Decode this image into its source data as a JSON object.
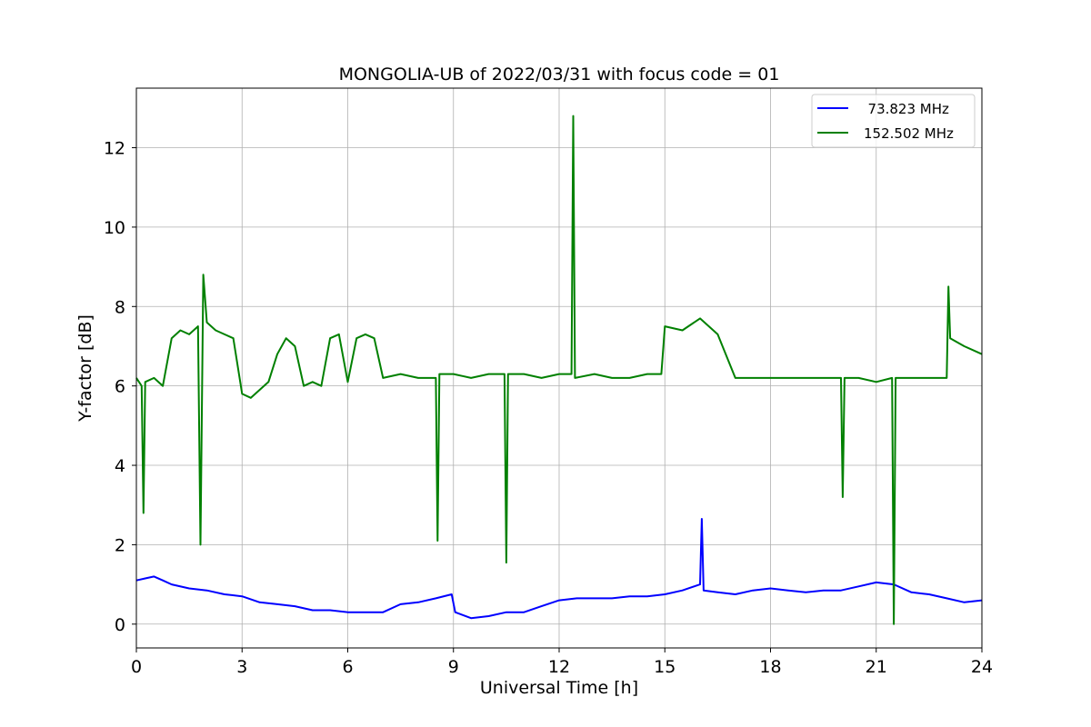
{
  "chart_data": {
    "type": "line",
    "title": "MONGOLIA-UB of 2022/03/31 with focus code = 01",
    "xlabel": "Universal Time [h]",
    "ylabel": "Y-factor [dB]",
    "xlim": [
      0,
      24
    ],
    "ylim": [
      -0.6,
      13.5
    ],
    "xticks": [
      0,
      3,
      6,
      9,
      12,
      15,
      18,
      21,
      24
    ],
    "xtick_labels": [
      "0",
      "3",
      "6",
      "9",
      "12",
      "15",
      "18",
      "21",
      "24"
    ],
    "yticks": [
      0,
      2,
      4,
      6,
      8,
      10,
      12
    ],
    "ytick_labels": [
      "0",
      "2",
      "4",
      "6",
      "8",
      "10",
      "12"
    ],
    "grid": true,
    "legend_position": "top-right",
    "series": [
      {
        "name": "  73.823 MHz",
        "color": "#0000ff",
        "x": [
          0.0,
          0.25,
          0.5,
          0.75,
          1.0,
          1.5,
          2.0,
          2.5,
          3.0,
          3.5,
          4.0,
          4.5,
          5.0,
          5.5,
          6.0,
          6.5,
          7.0,
          7.5,
          8.0,
          8.5,
          8.95,
          9.05,
          9.5,
          10.0,
          10.5,
          11.0,
          11.5,
          12.0,
          12.5,
          13.0,
          13.5,
          14.0,
          14.5,
          15.0,
          15.5,
          16.0,
          16.05,
          16.1,
          16.5,
          17.0,
          17.5,
          18.0,
          18.5,
          19.0,
          19.5,
          20.0,
          20.5,
          21.0,
          21.5,
          22.0,
          22.5,
          23.0,
          23.5,
          24.0
        ],
        "y": [
          1.1,
          1.15,
          1.2,
          1.1,
          1.0,
          0.9,
          0.85,
          0.75,
          0.7,
          0.55,
          0.5,
          0.45,
          0.35,
          0.35,
          0.3,
          0.3,
          0.3,
          0.5,
          0.55,
          0.65,
          0.75,
          0.3,
          0.15,
          0.2,
          0.3,
          0.3,
          0.45,
          0.6,
          0.65,
          0.65,
          0.65,
          0.7,
          0.7,
          0.75,
          0.85,
          1.0,
          2.65,
          0.85,
          0.8,
          0.75,
          0.85,
          0.9,
          0.85,
          0.8,
          0.85,
          0.85,
          0.95,
          1.05,
          1.0,
          0.8,
          0.75,
          0.65,
          0.55,
          0.6
        ]
      },
      {
        "name": "152.502 MHz",
        "color": "#008000",
        "x": [
          0.0,
          0.15,
          0.2,
          0.25,
          0.5,
          0.75,
          1.0,
          1.25,
          1.5,
          1.75,
          1.82,
          1.9,
          2.0,
          2.25,
          2.5,
          2.75,
          3.0,
          3.25,
          3.5,
          3.75,
          4.0,
          4.25,
          4.5,
          4.75,
          5.0,
          5.25,
          5.5,
          5.75,
          6.0,
          6.25,
          6.5,
          6.75,
          7.0,
          7.5,
          8.0,
          8.5,
          8.55,
          8.6,
          9.0,
          9.5,
          10.0,
          10.45,
          10.5,
          10.55,
          11.0,
          11.5,
          12.0,
          12.35,
          12.4,
          12.45,
          13.0,
          13.5,
          14.0,
          14.5,
          14.9,
          15.0,
          15.5,
          16.0,
          16.25,
          16.5,
          17.0,
          17.5,
          17.7,
          18.0,
          18.5,
          19.0,
          19.5,
          20.0,
          20.05,
          20.1,
          20.5,
          21.0,
          21.45,
          21.5,
          21.55,
          22.0,
          22.5,
          23.0,
          23.05,
          23.1,
          23.5,
          24.0
        ],
        "y": [
          6.2,
          6.0,
          2.8,
          6.1,
          6.2,
          6.0,
          7.2,
          7.4,
          7.3,
          7.5,
          2.0,
          8.8,
          7.6,
          7.4,
          7.3,
          7.2,
          5.8,
          5.7,
          5.9,
          6.1,
          6.8,
          7.2,
          7.0,
          6.0,
          6.1,
          6.0,
          7.2,
          7.3,
          6.1,
          7.2,
          7.3,
          7.2,
          6.2,
          6.3,
          6.2,
          6.2,
          2.1,
          6.3,
          6.3,
          6.2,
          6.3,
          6.3,
          1.55,
          6.3,
          6.3,
          6.2,
          6.3,
          6.3,
          12.8,
          6.2,
          6.3,
          6.2,
          6.2,
          6.3,
          6.3,
          7.5,
          7.4,
          7.7,
          7.5,
          7.3,
          6.2,
          6.2,
          6.2,
          6.2,
          6.2,
          6.2,
          6.2,
          6.2,
          3.2,
          6.2,
          6.2,
          6.1,
          6.2,
          0.0,
          6.2,
          6.2,
          6.2,
          6.2,
          8.5,
          7.2,
          7.0,
          6.8
        ]
      }
    ]
  }
}
